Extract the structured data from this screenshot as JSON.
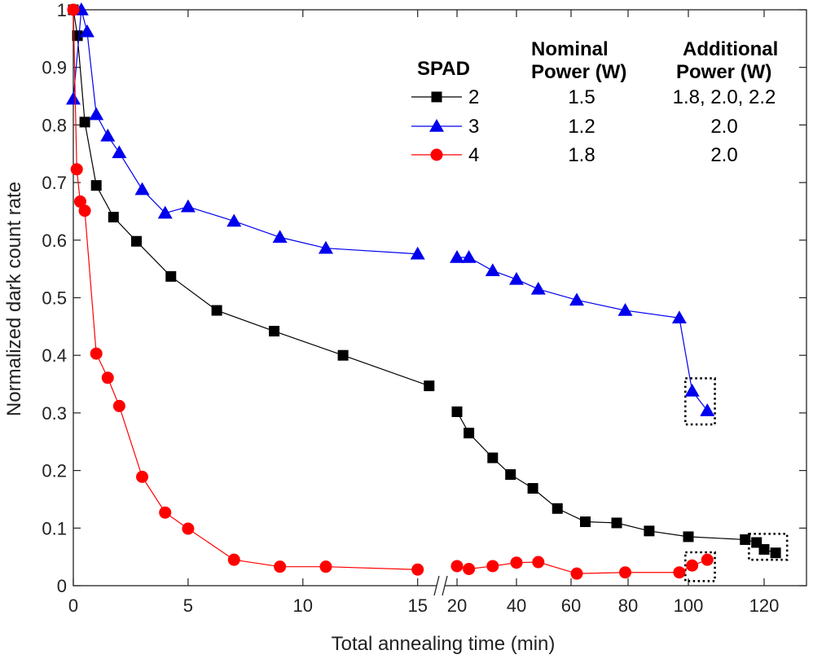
{
  "chart_data": {
    "type": "line",
    "xlabel": "Total annealing time (min)",
    "ylabel": "Normalized dark count rate",
    "ylim": [
      0,
      1
    ],
    "yticks": [
      "0",
      "0.1",
      "0.2",
      "0.3",
      "0.4",
      "0.5",
      "0.6",
      "0.7",
      "0.8",
      "0.9",
      "1"
    ],
    "x_axis_break": {
      "left_segment": [
        0,
        16
      ],
      "right_segment": [
        16,
        130
      ],
      "break_mark": "//"
    },
    "xticks": [
      {
        "label": "0",
        "value": 0
      },
      {
        "label": "5",
        "value": 5
      },
      {
        "label": "10",
        "value": 10
      },
      {
        "label": "15",
        "value": 15
      },
      {
        "label": "20",
        "value": 20
      },
      {
        "label": "40",
        "value": 40
      },
      {
        "label": "60",
        "value": 60
      },
      {
        "label": "80",
        "value": 80
      },
      {
        "label": "100",
        "value": 100
      },
      {
        "label": "120",
        "value": 120
      }
    ],
    "grid": false,
    "series": [
      {
        "name": "2",
        "color": "#000000",
        "marker": "square",
        "nominal_power": "1.5",
        "additional_power": "1.8, 2.0, 2.2",
        "x": [
          0,
          0.18,
          0.5,
          1.0,
          1.75,
          2.75,
          4.25,
          6.25,
          8.75,
          11.75,
          15.5,
          20,
          24,
          32,
          38,
          46,
          55,
          65,
          76,
          87,
          100,
          115,
          118,
          120,
          123
        ],
        "y": [
          1.0,
          0.955,
          0.805,
          0.695,
          0.64,
          0.598,
          0.537,
          0.478,
          0.442,
          0.4,
          0.347,
          0.302,
          0.265,
          0.222,
          0.193,
          0.169,
          0.134,
          0.111,
          0.109,
          0.095,
          0.085,
          0.08,
          0.075,
          0.063,
          0.057
        ]
      },
      {
        "name": "3",
        "color": "#0000ee",
        "marker": "triangle",
        "nominal_power": "1.2",
        "additional_power": "2.0",
        "x": [
          0,
          0.35,
          0.6,
          1.0,
          1.5,
          2.0,
          3.0,
          4.0,
          5.0,
          7.0,
          9.0,
          11.0,
          15.0,
          20,
          24,
          32,
          40,
          48,
          62,
          79,
          97,
          101,
          105
        ],
        "y": [
          0.845,
          1.0,
          0.962,
          0.818,
          0.781,
          0.752,
          0.688,
          0.647,
          0.658,
          0.633,
          0.605,
          0.586,
          0.576,
          0.57,
          0.57,
          0.547,
          0.532,
          0.515,
          0.496,
          0.478,
          0.465,
          0.338,
          0.304
        ]
      },
      {
        "name": "4",
        "color": "#ff0000",
        "marker": "circle",
        "nominal_power": "1.8",
        "additional_power": "2.0",
        "x": [
          0,
          0.15,
          0.3,
          0.5,
          1.0,
          1.5,
          2.0,
          3.0,
          4.0,
          5.0,
          7.0,
          9.0,
          11.0,
          15.0,
          20,
          24,
          32,
          40,
          48,
          62,
          79,
          97,
          101,
          105
        ],
        "y": [
          1.0,
          0.723,
          0.667,
          0.651,
          0.403,
          0.361,
          0.312,
          0.189,
          0.127,
          0.099,
          0.045,
          0.033,
          0.033,
          0.028,
          0.034,
          0.029,
          0.034,
          0.04,
          0.041,
          0.021,
          0.023,
          0.023,
          0.035,
          0.045
        ]
      }
    ],
    "legend": {
      "placement": "top-right",
      "header_spad": "SPAD",
      "header_nominal_1": "Nominal",
      "header_nominal_2": "Power (W)",
      "header_additional_1": "Additional",
      "header_additional_2": "Power (W)"
    },
    "annotations": [
      {
        "type": "dotted-box",
        "target": "series 3 final points",
        "x_range": [
          99,
          107
        ],
        "y_range": [
          0.28,
          0.36
        ]
      },
      {
        "type": "dotted-box",
        "target": "series 2 final points",
        "x_range": [
          116,
          126
        ],
        "y_range": [
          0.045,
          0.09
        ]
      },
      {
        "type": "dotted-box",
        "target": "series 4 final points",
        "x_range": [
          99,
          107
        ],
        "y_range": [
          0.008,
          0.058
        ]
      }
    ]
  }
}
